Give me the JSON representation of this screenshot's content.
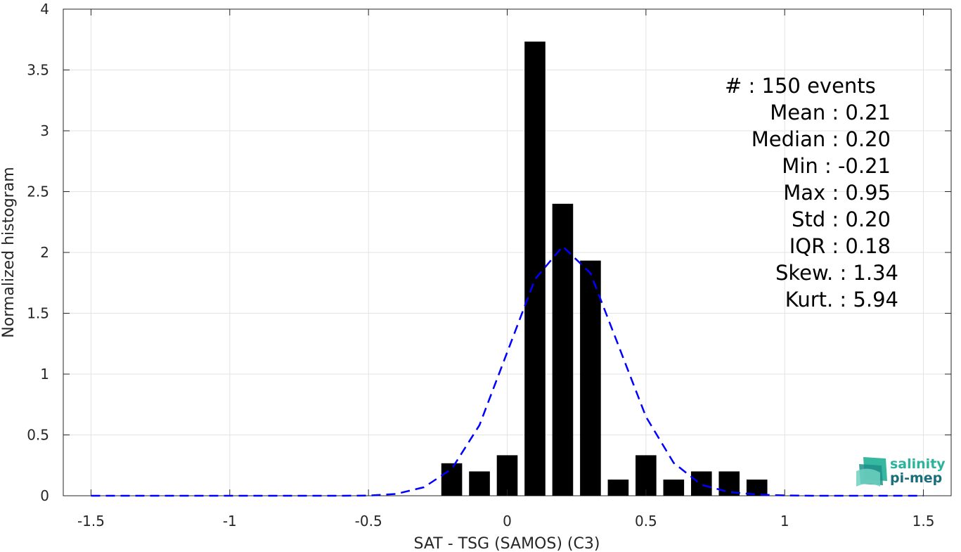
{
  "chart_data": {
    "type": "bar",
    "xlabel": "SAT - TSG (SAMOS) (C3)",
    "ylabel": "Normalized histogram",
    "xlim": [
      -1.6,
      1.6
    ],
    "ylim": [
      0,
      4
    ],
    "x_ticks": [
      -1.5,
      -1,
      -0.5,
      0,
      0.5,
      1,
      1.5
    ],
    "x_tick_labels": [
      "-1.5",
      "-1",
      "-0.5",
      "0",
      "0.5",
      "1",
      "1.5"
    ],
    "y_ticks": [
      0,
      0.5,
      1,
      1.5,
      2,
      2.5,
      3,
      3.5,
      4
    ],
    "y_tick_labels": [
      "0",
      "0.5",
      "1",
      "1.5",
      "2",
      "2.5",
      "3",
      "3.5",
      "4"
    ],
    "grid": true,
    "bar_width": 0.075,
    "bars": {
      "x": [
        -0.2,
        -0.1,
        0.0,
        0.1,
        0.2,
        0.3,
        0.4,
        0.5,
        0.6,
        0.7,
        0.8,
        0.9
      ],
      "values": [
        0.267,
        0.2,
        0.333,
        3.733,
        2.4,
        1.933,
        0.133,
        0.333,
        0.133,
        0.2,
        0.2,
        0.133
      ],
      "color": "#000000"
    },
    "fit_curve": {
      "style": "dashed",
      "color": "#0000ff",
      "x": [
        -1.5,
        -1.4,
        -1.3,
        -1.2,
        -1.1,
        -1.0,
        -0.9,
        -0.8,
        -0.7,
        -0.6,
        -0.5,
        -0.4,
        -0.3,
        -0.2,
        -0.1,
        0.0,
        0.1,
        0.2,
        0.3,
        0.4,
        0.5,
        0.6,
        0.7,
        0.8,
        0.9,
        1.0,
        1.1,
        1.2,
        1.3,
        1.4,
        1.5
      ],
      "y": [
        0,
        0,
        0,
        0,
        0,
        0,
        0,
        0,
        0,
        0,
        0.002,
        0.015,
        0.07,
        0.22,
        0.58,
        1.18,
        1.78,
        2.05,
        1.83,
        1.24,
        0.65,
        0.27,
        0.09,
        0.03,
        0.01,
        0.003,
        0,
        0,
        0,
        0,
        0
      ]
    },
    "stats_lines": [
      "#  : 150 events",
      "Mean : 0.21",
      "Median : 0.20",
      "Min : -0.21",
      "Max : 0.95",
      "Std : 0.20",
      "IQR : 0.18",
      "Skew. : 1.34",
      "Kurt. : 5.94"
    ],
    "stats_alignment": [
      "right",
      "right",
      "right",
      "right",
      "right",
      "right",
      "right",
      "left",
      "left"
    ]
  },
  "logo": {
    "line1": "salinity",
    "line2": "pi-mep",
    "color_top": "#2bb39b",
    "color_bottom": "#1a6e7a"
  }
}
